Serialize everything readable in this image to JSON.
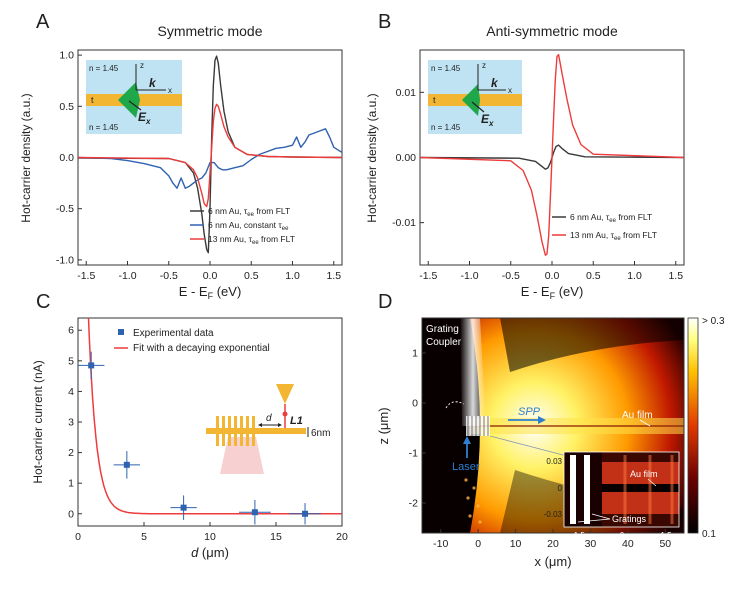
{
  "colors": {
    "black": "#3a3a3a",
    "red": "#ee3b3b",
    "blue": "#2f62b0",
    "gold": "#f2b632",
    "sky": "#bfe3f3",
    "green": "#1fa84a",
    "pink": "#f6c9c9"
  },
  "panel_letters": [
    "A",
    "B",
    "C",
    "D"
  ],
  "chart_data": [
    {
      "panel": "A",
      "type": "line",
      "title": "Symmetric mode",
      "xlabel": "E - E_F (eV)",
      "ylabel": "Hot-carrier density (a.u.)",
      "xlim": [
        -1.6,
        1.6
      ],
      "ylim": [
        -1.05,
        1.05
      ],
      "xticks": [
        "-1.5",
        "-1.0",
        "-0.5",
        "0.0",
        "0.5",
        "1.0",
        "1.5"
      ],
      "yticks": [
        "-1.0",
        "-0.5",
        "0.0",
        "0.5",
        "1.0"
      ],
      "inset": {
        "n_top": "n = 1.45",
        "n_bottom": "n = 1.45",
        "thickness": "t",
        "axis_z": "z",
        "axis_x": "x",
        "k": "k",
        "field": "E_x"
      },
      "series": [
        {
          "name": "6 nm Au, τee from FLT",
          "color": "#3a3a3a",
          "x": [
            -1.6,
            -0.5,
            -0.3,
            -0.2,
            -0.15,
            -0.1,
            -0.07,
            -0.04,
            -0.02,
            0.0,
            0.02,
            0.04,
            0.06,
            0.08,
            0.1,
            0.13,
            0.17,
            0.22,
            0.3,
            0.45,
            0.7,
            1.0,
            1.6
          ],
          "y": [
            -0.005,
            -0.01,
            -0.05,
            -0.15,
            -0.3,
            -0.55,
            -0.75,
            -0.9,
            -0.93,
            -0.5,
            0.2,
            0.7,
            0.95,
            0.99,
            0.92,
            0.7,
            0.45,
            0.25,
            0.1,
            0.03,
            0.01,
            0.005,
            0.0
          ]
        },
        {
          "name": "6 nm Au, constant τee",
          "color": "#2f62b0",
          "x": [
            -1.6,
            -1.2,
            -1.0,
            -0.8,
            -0.6,
            -0.5,
            -0.45,
            -0.4,
            -0.35,
            -0.3,
            -0.25,
            -0.2,
            -0.15,
            -0.1,
            -0.05,
            0.0,
            0.05,
            0.1,
            0.15,
            0.2,
            0.3,
            0.4,
            0.5,
            0.6,
            0.7,
            0.8,
            0.9,
            1.0,
            1.05,
            1.1,
            1.15,
            1.2,
            1.3,
            1.4,
            1.45,
            1.5,
            1.6
          ],
          "y": [
            0.0,
            -0.01,
            -0.03,
            -0.06,
            -0.1,
            -0.18,
            -0.25,
            -0.3,
            -0.2,
            -0.3,
            -0.28,
            -0.25,
            -0.22,
            -0.2,
            -0.15,
            -0.05,
            -0.05,
            -0.1,
            -0.12,
            -0.12,
            -0.1,
            -0.08,
            -0.02,
            0.03,
            0.06,
            0.09,
            0.1,
            0.12,
            0.2,
            0.1,
            0.15,
            0.22,
            0.25,
            0.28,
            0.2,
            0.1,
            0.05
          ]
        },
        {
          "name": "13 nm Au, τee from FLT",
          "color": "#ee3b3b",
          "x": [
            -1.6,
            -0.5,
            -0.3,
            -0.2,
            -0.15,
            -0.1,
            -0.07,
            -0.04,
            -0.02,
            0.0,
            0.02,
            0.04,
            0.06,
            0.08,
            0.1,
            0.13,
            0.17,
            0.22,
            0.3,
            0.45,
            0.7,
            1.0,
            1.6
          ],
          "y": [
            0.0,
            -0.01,
            -0.05,
            -0.12,
            -0.2,
            -0.35,
            -0.45,
            -0.48,
            -0.4,
            -0.15,
            0.1,
            0.35,
            0.48,
            0.52,
            0.5,
            0.42,
            0.3,
            0.2,
            0.1,
            0.03,
            0.01,
            0.005,
            0.0
          ]
        }
      ]
    },
    {
      "panel": "B",
      "type": "line",
      "title": "Anti-symmetric mode",
      "xlabel": "E - E_F (eV)",
      "ylabel": "Hot-carrier density (a.u.)",
      "xlim": [
        -1.6,
        1.6
      ],
      "ylim": [
        -0.0165,
        0.0165
      ],
      "xticks": [
        "-1.5",
        "-1.0",
        "-0.5",
        "0.0",
        "0.5",
        "1.0",
        "1.5"
      ],
      "yticks": [
        "-0.01",
        "0.00",
        "0.01"
      ],
      "inset": {
        "n_top": "n = 1.45",
        "n_bottom": "n = 1.45",
        "thickness": "t",
        "axis_z": "z",
        "axis_x": "x",
        "k": "k",
        "field": "E_x"
      },
      "series": [
        {
          "name": "6 nm Au, τee from FLT",
          "color": "#3a3a3a",
          "x": [
            -1.6,
            -0.4,
            -0.2,
            -0.12,
            -0.08,
            -0.05,
            -0.02,
            0.0,
            0.02,
            0.05,
            0.08,
            0.12,
            0.2,
            0.4,
            1.6
          ],
          "y": [
            0.0,
            -0.0001,
            -0.0006,
            -0.0014,
            -0.0018,
            -0.0016,
            -0.0008,
            0.0,
            0.0008,
            0.0017,
            0.0019,
            0.0014,
            0.0006,
            0.0001,
            0.0
          ]
        },
        {
          "name": "13 nm Au, τee from FLT",
          "color": "#ee3b3b",
          "x": [
            -1.6,
            -0.5,
            -0.35,
            -0.25,
            -0.18,
            -0.12,
            -0.08,
            -0.06,
            -0.04,
            -0.02,
            0.0,
            0.02,
            0.04,
            0.06,
            0.08,
            0.12,
            0.18,
            0.25,
            0.35,
            0.5,
            1.6
          ],
          "y": [
            0.0,
            -0.0005,
            -0.002,
            -0.005,
            -0.009,
            -0.013,
            -0.015,
            -0.0148,
            -0.012,
            -0.006,
            0.0,
            0.006,
            0.012,
            0.0155,
            0.0158,
            0.013,
            0.009,
            0.005,
            0.002,
            0.0005,
            0.0
          ]
        }
      ]
    },
    {
      "panel": "C",
      "type": "scatter",
      "xlabel": "d (μm)",
      "ylabel": "Hot-carrier current (nA)",
      "xlim": [
        0,
        20
      ],
      "ylim": [
        -0.4,
        6.4
      ],
      "xticks": [
        "0",
        "5",
        "10",
        "15",
        "20"
      ],
      "yticks": [
        "0",
        "1",
        "2",
        "3",
        "4",
        "5",
        "6"
      ],
      "legend": [
        "Experimental data",
        "Fit with a decaying exponential"
      ],
      "inset": {
        "d": "d",
        "probe": "L1",
        "thickness": "6nm"
      },
      "points": [
        {
          "x": 1.0,
          "y": 4.85,
          "xerr": 1.0,
          "yerr": 0.45
        },
        {
          "x": 3.7,
          "y": 1.6,
          "xerr": 1.0,
          "yerr": 0.45
        },
        {
          "x": 8.0,
          "y": 0.2,
          "xerr": 1.0,
          "yerr": 0.4
        },
        {
          "x": 13.4,
          "y": 0.05,
          "xerr": 1.2,
          "yerr": 0.4
        },
        {
          "x": 17.2,
          "y": 0.0,
          "xerr": 1.2,
          "yerr": 0.35
        }
      ],
      "fit": {
        "amplitude": 24.0,
        "decay_um": 0.6
      }
    },
    {
      "panel": "D",
      "type": "heatmap",
      "xlabel": "x (μm)",
      "ylabel": "z (μm)",
      "xlim": [
        -15,
        55
      ],
      "ylim": [
        -2.6,
        1.7
      ],
      "xticks": [
        "-10",
        "0",
        "10",
        "20",
        "30",
        "40",
        "50"
      ],
      "yticks": [
        "-2",
        "-1",
        "0",
        "1"
      ],
      "colorbar": {
        "max_label": "> 0.3",
        "min_label": "0.1"
      },
      "labels": {
        "coupler": "Grating Coupler",
        "spp": "SPP",
        "film": "Au film",
        "laser": "Laser"
      },
      "inset": {
        "film": "Au film",
        "gratings": "Gratings",
        "xticks": [
          "-1.5",
          "0",
          "1.5"
        ],
        "yticks": [
          "0.03",
          "0",
          "-0.03"
        ]
      }
    }
  ]
}
